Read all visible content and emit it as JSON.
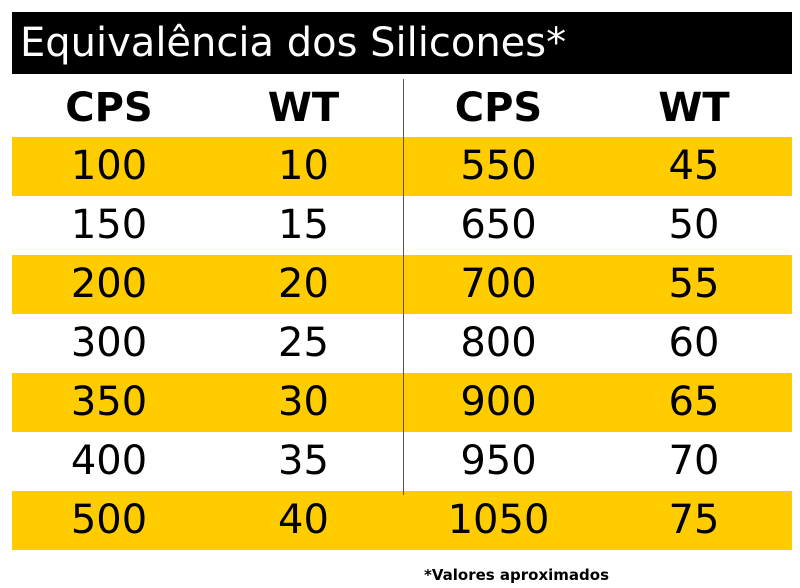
{
  "title": "Equivalência dos Silicones*",
  "headers": [
    "CPS",
    "WT",
    "CPS",
    "WT"
  ],
  "rows": [
    [
      "100",
      "10",
      "550",
      "45"
    ],
    [
      "150",
      "15",
      "650",
      "50"
    ],
    [
      "200",
      "20",
      "700",
      "55"
    ],
    [
      "300",
      "25",
      "800",
      "60"
    ],
    [
      "350",
      "30",
      "900",
      "65"
    ],
    [
      "400",
      "35",
      "950",
      "70"
    ],
    [
      "500",
      "40",
      "1050",
      "75"
    ]
  ],
  "footnote": "*Valores aproximados",
  "colors": {
    "title_bg": "#000000",
    "title_text": "#ffffff",
    "stripe": "#ffcc00",
    "background": "#ffffff"
  }
}
